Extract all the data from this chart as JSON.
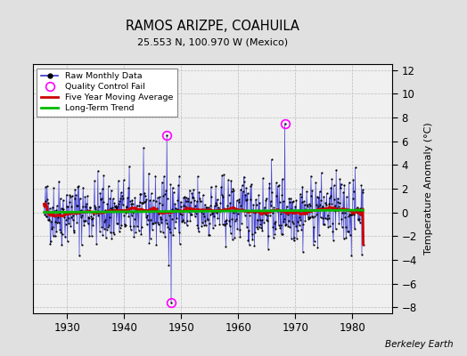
{
  "title": "RAMOS ARIZPE, COAHUILA",
  "subtitle": "25.553 N, 100.970 W (Mexico)",
  "ylabel": "Temperature Anomaly (°C)",
  "credit": "Berkeley Earth",
  "xlim": [
    1924,
    1987
  ],
  "ylim": [
    -8.5,
    12.5
  ],
  "yticks": [
    -8,
    -6,
    -4,
    -2,
    0,
    2,
    4,
    6,
    8,
    10,
    12
  ],
  "xticks": [
    1930,
    1940,
    1950,
    1960,
    1970,
    1980
  ],
  "fig_bg_color": "#e0e0e0",
  "plot_bg_color": "#f0f0f0",
  "raw_line_color": "#3333cc",
  "raw_dot_color": "#000000",
  "moving_avg_color": "#cc0000",
  "trend_color": "#00bb00",
  "qc_fail_color": "#ff00ff",
  "grid_color": "#bbbbbb",
  "seed": 42,
  "n_months": 672,
  "start_year": 1926.0,
  "qc_times": [
    1947.5,
    1948.3,
    1968.2
  ],
  "qc_values": [
    6.5,
    -7.6,
    7.5
  ],
  "noise_std": 1.4
}
